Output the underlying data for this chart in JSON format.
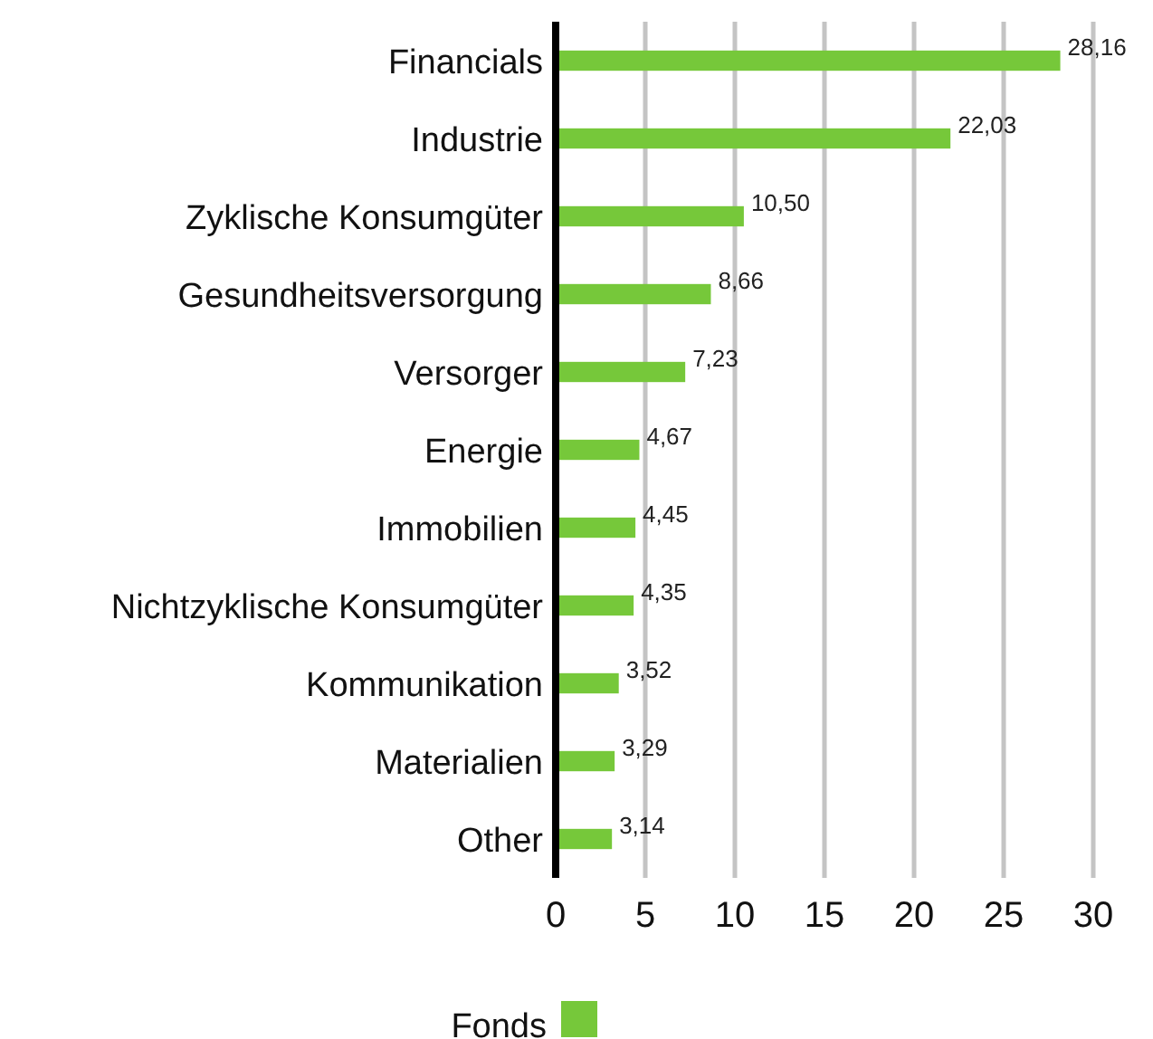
{
  "chart_data": {
    "type": "bar",
    "orientation": "horizontal",
    "categories": [
      "Financials",
      "Industrie",
      "Zyklische Konsumgüter",
      "Gesundheitsversorgung",
      "Versorger",
      "Energie",
      "Immobilien",
      "Nichtzyklische Konsumgüter",
      "Kommunikation",
      "Materialien",
      "Other"
    ],
    "series": [
      {
        "name": "Fonds",
        "color": "#76c83a",
        "values": [
          28.16,
          22.03,
          10.5,
          8.66,
          7.23,
          4.67,
          4.45,
          4.35,
          3.52,
          3.29,
          3.14
        ],
        "value_labels": [
          "28,16",
          "22,03",
          "10,50",
          "8,66",
          "7,23",
          "4,67",
          "4,45",
          "4,35",
          "3,52",
          "3,29",
          "3,14"
        ]
      }
    ],
    "xlim": [
      0,
      30
    ],
    "xticks": [
      0,
      5,
      10,
      15,
      20,
      25,
      30
    ],
    "grid": "x",
    "legend": "bottom"
  }
}
